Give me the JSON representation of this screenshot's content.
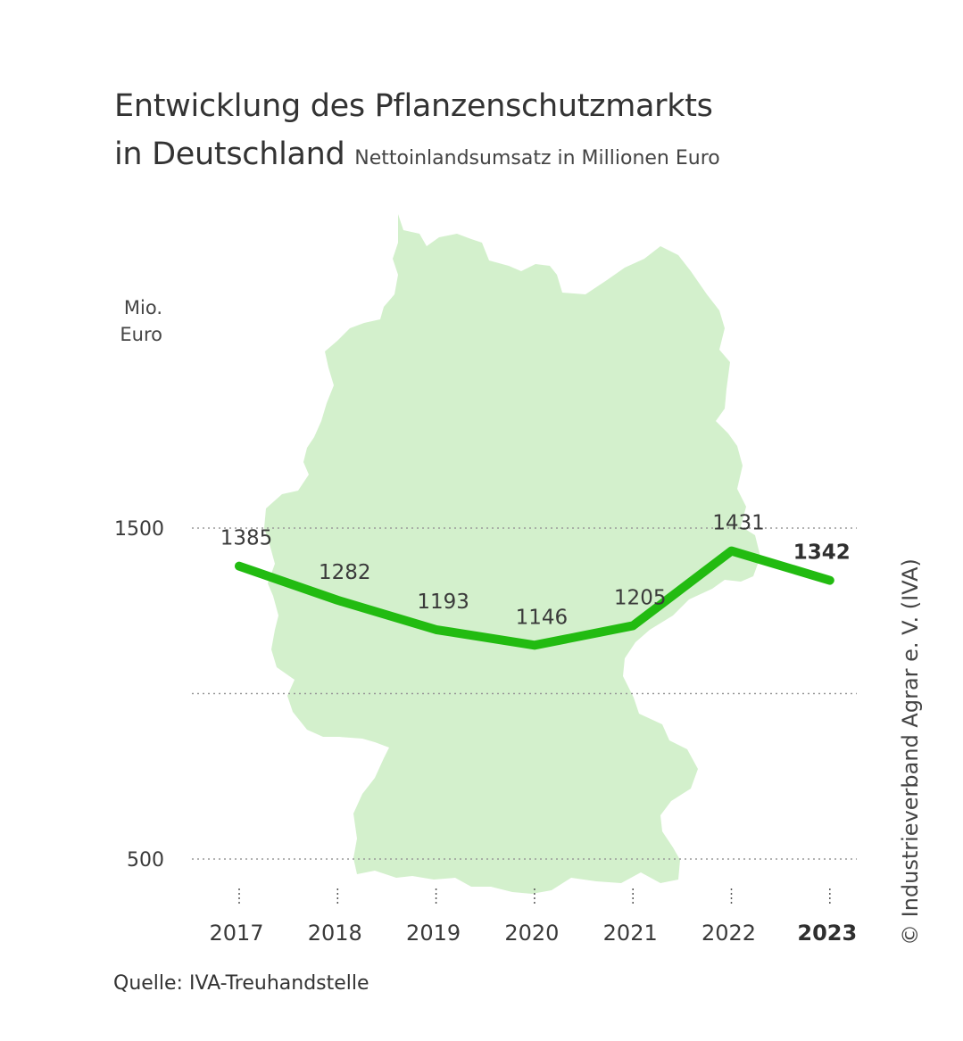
{
  "title_line1": "Entwicklung des Pflanzenschutzmarkts",
  "title_line2": "in Deutschland",
  "subtitle": "Nettoinlandsumsatz in Millionen Euro",
  "y_axis_unit": [
    "Mio.",
    "Euro"
  ],
  "source": "Quelle: IVA-Treuhandstelle",
  "credit": "© Industrieverband Agrar e. V. (IVA)",
  "colors": {
    "line": "#22bb11",
    "map_fill": "#d3f0cc",
    "text": "#3a3a3a",
    "grid": "#999999"
  },
  "chart_data": {
    "type": "line",
    "title": "Entwicklung des Pflanzenschutzmarkts in Deutschland",
    "subtitle": "Nettoinlandsumsatz in Millionen Euro",
    "ylabel": "Mio. Euro",
    "xlabel": "",
    "x": [
      "2017",
      "2018",
      "2019",
      "2020",
      "2021",
      "2022",
      "2023"
    ],
    "values": [
      1385,
      1282,
      1193,
      1146,
      1205,
      1431,
      1342
    ],
    "highlight": "2023",
    "yticks": [
      500,
      1500
    ],
    "gridlines": [
      500,
      1000,
      1500
    ],
    "ylim": [
      500,
      1500
    ],
    "background": "map of Germany"
  }
}
